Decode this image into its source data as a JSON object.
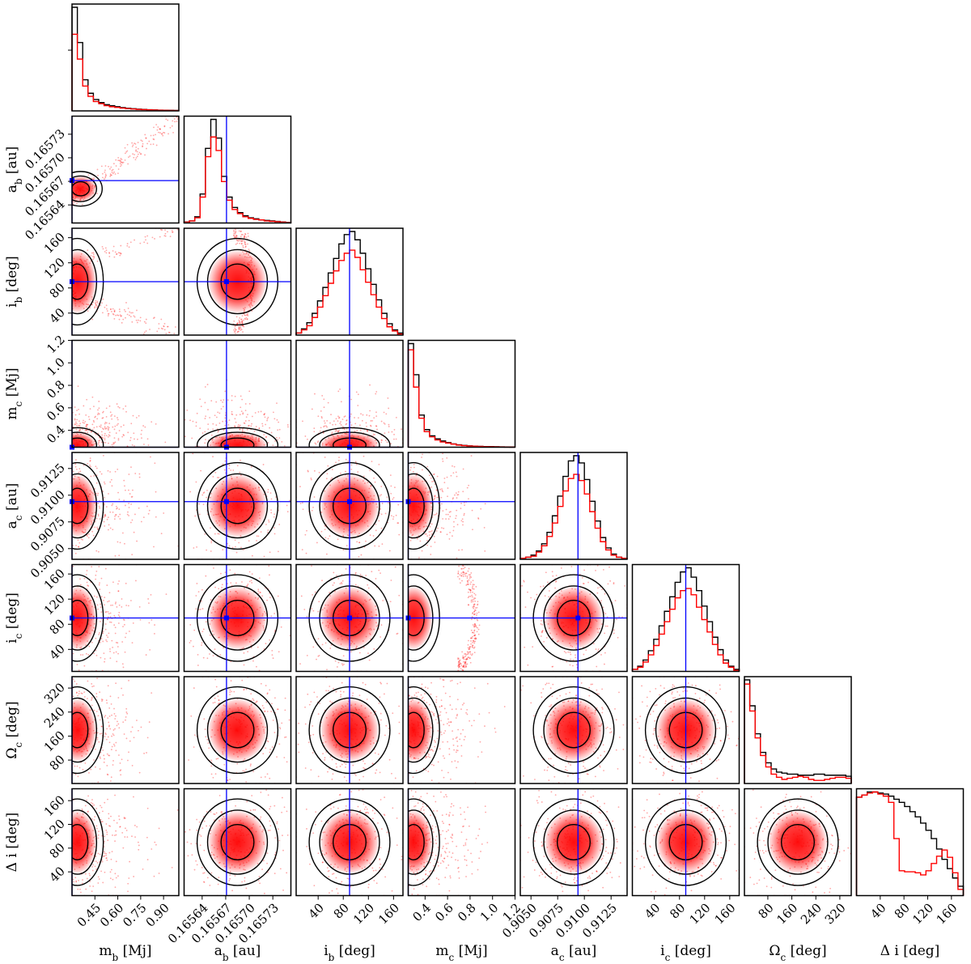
{
  "chart_data": {
    "type": "corner",
    "title": "",
    "colors": {
      "all_samples": "#000000",
      "selected_samples": "#ff0000",
      "truth": "#0000ff"
    },
    "params": [
      {
        "key": "mb",
        "label": "m",
        "sub": "b",
        "unit": " [Mj]",
        "range": [
          0.3,
          1.0
        ],
        "ticks": [
          0.45,
          0.6,
          0.75,
          0.9
        ],
        "tick_labels": [
          "0.45",
          "0.60",
          "0.75",
          "0.90"
        ],
        "truth": 0.3
      },
      {
        "key": "ab",
        "label": "a",
        "sub": "b",
        "unit": " [au]",
        "range": [
          0.165617,
          0.165753
        ],
        "ticks": [
          0.16564,
          0.16567,
          0.1657,
          0.16573
        ],
        "tick_labels": [
          "0.16564",
          "0.16567",
          "0.16570",
          "0.16573"
        ],
        "truth": 0.165671
      },
      {
        "key": "ib",
        "label": "i",
        "sub": "b",
        "unit": " [deg]",
        "range": [
          5,
          175
        ],
        "ticks": [
          40,
          80,
          120,
          160
        ],
        "tick_labels": [
          "40",
          "80",
          "120",
          "160"
        ],
        "truth": 90
      },
      {
        "key": "mc",
        "label": "m",
        "sub": "c",
        "unit": " [Mj]",
        "range": [
          0.25,
          1.2
        ],
        "ticks": [
          0.4,
          0.6,
          0.8,
          1.0,
          1.2
        ],
        "tick_labels": [
          "0.4",
          "0.6",
          "0.8",
          "1.0",
          "1.2"
        ],
        "truth": 0.25
      },
      {
        "key": "ac",
        "label": "a",
        "sub": "c",
        "unit": " [au]",
        "range": [
          0.904,
          0.914
        ],
        "ticks": [
          0.905,
          0.9075,
          0.91,
          0.9125
        ],
        "tick_labels": [
          "0.9050",
          "0.9075",
          "0.9100",
          "0.9125"
        ],
        "truth": 0.9094
      },
      {
        "key": "ic",
        "label": "i",
        "sub": "c",
        "unit": " [deg]",
        "range": [
          5,
          175
        ],
        "ticks": [
          40,
          80,
          120,
          160
        ],
        "tick_labels": [
          "40",
          "80",
          "120",
          "160"
        ],
        "truth": 90
      },
      {
        "key": "Oc",
        "label": "Ω",
        "sub": "c",
        "unit": " [deg]",
        "range": [
          2,
          358
        ],
        "ticks": [
          80,
          160,
          240,
          320
        ],
        "tick_labels": [
          "80",
          "160",
          "240",
          "320"
        ],
        "truth": null
      },
      {
        "key": "di",
        "label": "Δ i",
        "sub": "",
        "unit": " [deg]",
        "range": [
          0,
          180
        ],
        "ticks": [
          40,
          80,
          120,
          160
        ],
        "tick_labels": [
          "40",
          "80",
          "120",
          "160"
        ],
        "truth": null
      }
    ],
    "diagonal_histograms": [
      {
        "param": "mb",
        "all": [
          100,
          66,
          30,
          17,
          11,
          8,
          6,
          5,
          4,
          3.2,
          2.6,
          2.1,
          1.7,
          1.4,
          1.1,
          0.9,
          0.7,
          0.6,
          0.5,
          0.4
        ],
        "selected": [
          74,
          50,
          24,
          14,
          9,
          7,
          5,
          4,
          3.4,
          2.7,
          2.2,
          1.8,
          1.4,
          1.2,
          1,
          0.8,
          0.6,
          0.5,
          0.4,
          0.3
        ]
      },
      {
        "param": "ab",
        "all": [
          1,
          2,
          6,
          28,
          72,
          100,
          82,
          45,
          25,
          15,
          10,
          7,
          5,
          4,
          3,
          2.5,
          2,
          1.5,
          1,
          0.5
        ],
        "selected": [
          0.8,
          2,
          5,
          25,
          64,
          83,
          70,
          40,
          22,
          13,
          9,
          6,
          4.5,
          3.5,
          3,
          2,
          1.6,
          1.2,
          0.8,
          0.4
        ]
      },
      {
        "param": "ib",
        "all": [
          2,
          6,
          12,
          21,
          33,
          46,
          60,
          74,
          88,
          97,
          100,
          92,
          79,
          64,
          49,
          34,
          21,
          11,
          5,
          2
        ],
        "selected": [
          2,
          5,
          9,
          17,
          27,
          38,
          50,
          62,
          72,
          79,
          82,
          75,
          63,
          51,
          39,
          27,
          16,
          8,
          4,
          1
        ]
      },
      {
        "param": "mc",
        "all": [
          100,
          70,
          31,
          17,
          11,
          8,
          6,
          4.5,
          3.2,
          2.3,
          1.7,
          1.3,
          1,
          0.8,
          0.6,
          0.5,
          0.4,
          0.3,
          0.2,
          0.1
        ],
        "selected": [
          94,
          58,
          28,
          15,
          10,
          7,
          5,
          4,
          3,
          2,
          1.5,
          1.1,
          0.9,
          0.7,
          0.5,
          0.4,
          0.3,
          0.2,
          0.1,
          0.1
        ]
      },
      {
        "param": "ac",
        "all": [
          1,
          2,
          4,
          8,
          15,
          26,
          42,
          61,
          80,
          95,
          100,
          93,
          77,
          56,
          37,
          21,
          11,
          5,
          2,
          1
        ],
        "selected": [
          1,
          2,
          3,
          7,
          13,
          22,
          35,
          51,
          66,
          78,
          82,
          76,
          63,
          46,
          30,
          17,
          9,
          4,
          2,
          1
        ]
      },
      {
        "param": "ic",
        "all": [
          2,
          5,
          11,
          20,
          31,
          44,
          58,
          72,
          86,
          96,
          100,
          91,
          78,
          63,
          48,
          33,
          21,
          11,
          5,
          2
        ],
        "selected": [
          2,
          4,
          9,
          16,
          25,
          36,
          48,
          60,
          71,
          78,
          80,
          74,
          62,
          50,
          38,
          26,
          16,
          8,
          4,
          1
        ]
      },
      {
        "param": "Oc",
        "all": [
          100,
          75,
          48,
          30,
          20,
          14,
          11,
          10,
          9,
          9,
          8,
          8,
          8,
          9,
          9,
          8,
          8,
          8,
          8,
          7
        ],
        "selected": [
          96,
          70,
          44,
          27,
          16,
          9,
          6,
          4,
          5,
          6,
          7,
          6,
          4,
          3,
          3,
          4,
          5,
          6,
          6,
          5
        ]
      },
      {
        "param": "di",
        "all": [
          95,
          97,
          100,
          100,
          99,
          98,
          96,
          93,
          90,
          86,
          81,
          76,
          70,
          63,
          55,
          45,
          35,
          26,
          17,
          9
        ],
        "selected": [
          95,
          97,
          99,
          100,
          98,
          96,
          90,
          55,
          24,
          23,
          23,
          22,
          20,
          24,
          31,
          38,
          44,
          37,
          22,
          6
        ]
      }
    ],
    "truth_line_note": "blue truth lines and point drawn where a value is marked"
  }
}
